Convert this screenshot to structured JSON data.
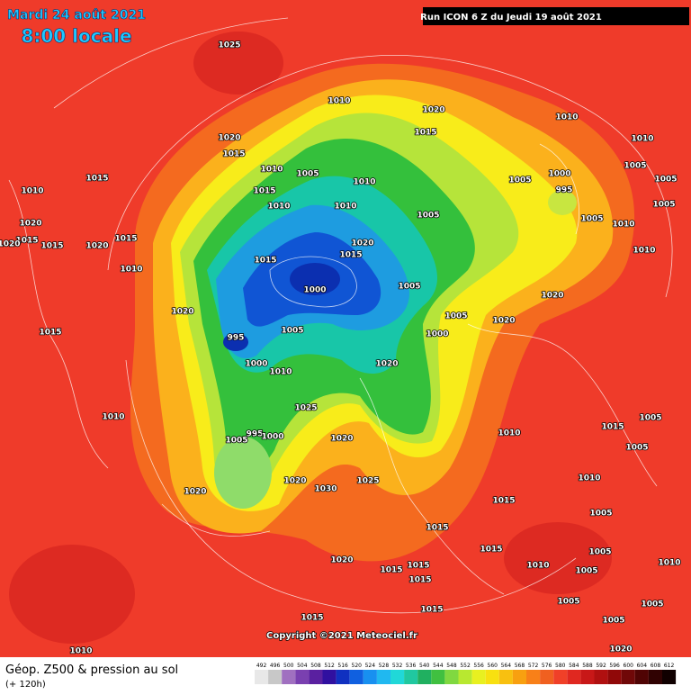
{
  "header": {
    "date": "Mardi 24 août 2021",
    "time": "8:00 locale",
    "run": "Run ICON 6 Z du Jeudi 19 août 2021"
  },
  "copyright": "Copyright ©2021 Meteociel.fr",
  "footer": {
    "title": "Géop. Z500 & pression au sol",
    "lead": "(+ 120h)"
  },
  "isobar_labels": [
    "1025",
    "1010",
    "1020",
    "1015",
    "1010",
    "1010",
    "1020",
    "1015",
    "1005",
    "1010",
    "1010",
    "1005",
    "1000",
    "995",
    "1005",
    "1005",
    "1005",
    "1010",
    "1015",
    "1020",
    "1015",
    "1015",
    "1020",
    "1020",
    "1015",
    "1010",
    "1015",
    "1010",
    "1005",
    "1010",
    "1020",
    "1015",
    "1005",
    "1010",
    "1010",
    "1015",
    "1000",
    "1005",
    "1020",
    "1020",
    "1015",
    "995",
    "1005",
    "1005",
    "1000",
    "1020",
    "1000",
    "1010",
    "1020",
    "1025",
    "1010",
    "1005",
    "995",
    "1000",
    "1020",
    "1010",
    "1005",
    "1020",
    "1020",
    "1030",
    "1025",
    "1015",
    "1015",
    "1015",
    "1020",
    "1015",
    "1015",
    "1015",
    "1010",
    "1005",
    "1005",
    "1010",
    "1005",
    "1015",
    "1015",
    "1005",
    "1005",
    "1010",
    "1020",
    "1005",
    "1015",
    "1005",
    "1010"
  ],
  "scale": [
    492,
    496,
    500,
    504,
    508,
    512,
    516,
    520,
    524,
    528,
    532,
    536,
    540,
    544,
    548,
    552,
    556,
    560,
    564,
    568,
    572,
    576,
    580,
    584,
    588,
    592,
    596,
    600,
    604,
    608,
    612
  ]
}
